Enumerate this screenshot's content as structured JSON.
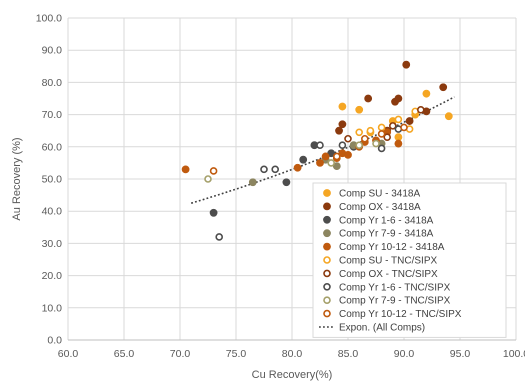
{
  "chart_data": {
    "type": "scatter",
    "xlabel": "Cu Recovery(%)",
    "ylabel": "Au Recovery (%)",
    "xlim": [
      60.0,
      100.0
    ],
    "ylim": [
      0.0,
      100.0
    ],
    "x_ticks": [
      "60.0",
      "65.0",
      "70.0",
      "75.0",
      "80.0",
      "85.0",
      "90.0",
      "95.0",
      "100.0"
    ],
    "y_ticks": [
      "0.0",
      "10.0",
      "20.0",
      "30.0",
      "40.0",
      "50.0",
      "60.0",
      "70.0",
      "80.0",
      "90.0",
      "100.0"
    ],
    "grid": true,
    "legend_position": "bottom-right",
    "series": [
      {
        "name": "Comp SU - 3418A",
        "color": "#F5A623",
        "marker": "filled",
        "points": [
          [
            84.5,
            72.5
          ],
          [
            86.0,
            71.5
          ],
          [
            87.0,
            64.5
          ],
          [
            89.0,
            68.0
          ],
          [
            92.0,
            76.5
          ],
          [
            94.0,
            69.5
          ],
          [
            91.0,
            70.0
          ],
          [
            89.5,
            63.0
          ]
        ]
      },
      {
        "name": "Comp OX - 3418A",
        "color": "#8B3A0E",
        "marker": "filled",
        "points": [
          [
            90.2,
            85.5
          ],
          [
            93.5,
            78.5
          ],
          [
            86.8,
            75.0
          ],
          [
            89.2,
            74.0
          ],
          [
            89.5,
            75.0
          ],
          [
            84.2,
            65.0
          ],
          [
            84.5,
            67.0
          ],
          [
            88.5,
            65.0
          ],
          [
            92.0,
            71.0
          ],
          [
            90.5,
            68.0
          ]
        ]
      },
      {
        "name": "Comp Yr 1-6 - 3418A",
        "color": "#4D4D4D",
        "marker": "filled",
        "points": [
          [
            73.0,
            39.5
          ],
          [
            79.5,
            49.0
          ],
          [
            81.0,
            56.0
          ],
          [
            82.0,
            60.5
          ],
          [
            83.5,
            58.0
          ],
          [
            85.5,
            60.0
          ]
        ]
      },
      {
        "name": "Comp Yr 7-9 - 3418A",
        "color": "#8C8560",
        "marker": "filled",
        "points": [
          [
            76.5,
            49.0
          ],
          [
            83.0,
            56.0
          ],
          [
            85.5,
            60.5
          ],
          [
            88.0,
            61.0
          ],
          [
            84.0,
            54.0
          ]
        ]
      },
      {
        "name": "Comp Yr 10-12 - 3418A",
        "color": "#C05A0E",
        "marker": "filled",
        "points": [
          [
            70.5,
            53.0
          ],
          [
            80.5,
            53.5
          ],
          [
            82.5,
            55.0
          ],
          [
            83.0,
            57.0
          ],
          [
            84.0,
            56.5
          ],
          [
            84.5,
            58.0
          ],
          [
            85.0,
            57.5
          ],
          [
            86.0,
            60.0
          ],
          [
            86.5,
            61.5
          ],
          [
            87.5,
            62.0
          ],
          [
            88.5,
            64.5
          ],
          [
            89.5,
            61.0
          ]
        ]
      },
      {
        "name": "Comp SU - TNC/SIPX",
        "color": "#F5A623",
        "marker": "open",
        "points": [
          [
            86.0,
            64.5
          ],
          [
            87.0,
            65.0
          ],
          [
            88.0,
            66.0
          ],
          [
            90.5,
            65.5
          ],
          [
            91.0,
            71.0
          ],
          [
            89.5,
            68.5
          ]
        ]
      },
      {
        "name": "Comp OX - TNC/SIPX",
        "color": "#8B3A0E",
        "marker": "open",
        "points": [
          [
            85.0,
            62.5
          ],
          [
            88.5,
            63.0
          ],
          [
            89.0,
            66.5
          ],
          [
            91.5,
            71.5
          ]
        ]
      },
      {
        "name": "Comp Yr 1-6 - TNC/SIPX",
        "color": "#4D4D4D",
        "marker": "open",
        "points": [
          [
            73.5,
            32.0
          ],
          [
            77.5,
            53.0
          ],
          [
            78.5,
            53.0
          ],
          [
            82.5,
            60.5
          ],
          [
            84.5,
            60.5
          ],
          [
            88.0,
            59.5
          ],
          [
            89.5,
            65.5
          ]
        ]
      },
      {
        "name": "Comp Yr 7-9 - TNC/SIPX",
        "color": "#A5A06A",
        "marker": "open",
        "points": [
          [
            72.5,
            50.0
          ],
          [
            83.5,
            55.0
          ],
          [
            86.0,
            60.5
          ],
          [
            87.5,
            61.0
          ]
        ]
      },
      {
        "name": "Comp Yr 10-12 - TNC/SIPX",
        "color": "#C05A0E",
        "marker": "open",
        "points": [
          [
            73.0,
            52.5
          ],
          [
            84.0,
            57.0
          ],
          [
            86.5,
            62.5
          ],
          [
            88.0,
            64.0
          ],
          [
            90.0,
            66.0
          ]
        ]
      }
    ],
    "trendline": {
      "name": "Expon. (All Comps)",
      "type": "exponential",
      "color": "#404040",
      "x_range": [
        71.0,
        94.5
      ],
      "y_at_start": 42.5,
      "y_at_end": 75.5
    }
  }
}
